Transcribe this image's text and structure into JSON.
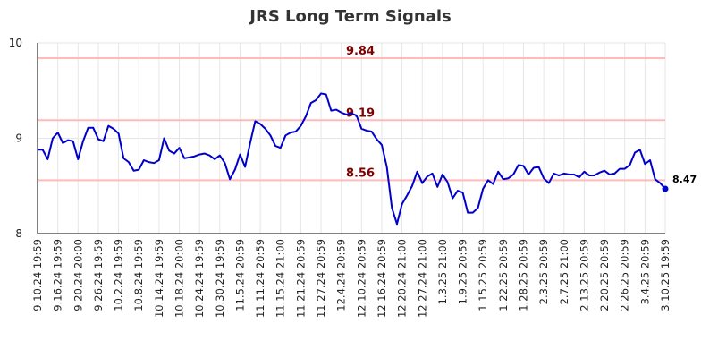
{
  "chart_data": {
    "type": "line",
    "title": "JRS Long Term Signals",
    "xlabel": "",
    "ylabel": "",
    "ylim": [
      8,
      10
    ],
    "yticks": [
      8,
      9,
      10
    ],
    "grid": true,
    "line_color": "#0000cc",
    "ref_line_color": "#ffbbbb",
    "ref_label_color": "#800000",
    "x_tick_labels": [
      "9.10.24 19:59",
      "9.16.24 19:59",
      "9.20.24 20:00",
      "9.26.24 19:59",
      "10.2.24 19:59",
      "10.8.24 19:59",
      "10.14.24 19:59",
      "10.18.24 20:00",
      "10.24.24 19:59",
      "10.30.24 19:59",
      "11.5.24 20:59",
      "11.11.24 20:59",
      "11.15.24 21:00",
      "11.21.24 20:59",
      "11.27.24 20:59",
      "12.4.24 20:59",
      "12.10.24 20:59",
      "12.16.24 20:59",
      "12.20.24 21:00",
      "12.27.24 21:00",
      "1.3.25 21:00",
      "1.9.25 20:59",
      "1.15.25 20:59",
      "1.22.25 20:59",
      "1.28.25 20:59",
      "2.3.25 20:59",
      "2.7.25 21:00",
      "2.13.25 20:59",
      "2.20.25 20:59",
      "2.26.25 20:59",
      "3.4.25 20:59",
      "3.10.25 19:59"
    ],
    "reference_lines": [
      {
        "value": 9.84,
        "label": "9.84"
      },
      {
        "value": 9.19,
        "label": "9.19"
      },
      {
        "value": 8.56,
        "label": "8.56"
      }
    ],
    "last_value_label": "8.47",
    "values": [
      8.88,
      8.88,
      8.78,
      9.0,
      9.06,
      8.95,
      8.98,
      8.97,
      8.78,
      8.97,
      9.11,
      9.11,
      8.99,
      8.97,
      9.13,
      9.1,
      9.05,
      8.79,
      8.75,
      8.66,
      8.67,
      8.77,
      8.75,
      8.74,
      8.77,
      9.0,
      8.87,
      8.84,
      8.9,
      8.79,
      8.8,
      8.81,
      8.83,
      8.84,
      8.82,
      8.78,
      8.82,
      8.74,
      8.57,
      8.67,
      8.83,
      8.7,
      8.95,
      9.18,
      9.15,
      9.1,
      9.03,
      8.92,
      8.9,
      9.03,
      9.06,
      9.07,
      9.13,
      9.23,
      9.37,
      9.4,
      9.47,
      9.46,
      9.29,
      9.3,
      9.27,
      9.25,
      9.26,
      9.24,
      9.1,
      9.08,
      9.07,
      8.99,
      8.93,
      8.7,
      8.27,
      8.1,
      8.31,
      8.4,
      8.5,
      8.65,
      8.53,
      8.6,
      8.63,
      8.49,
      8.62,
      8.54,
      8.37,
      8.45,
      8.43,
      8.22,
      8.22,
      8.27,
      8.47,
      8.56,
      8.52,
      8.65,
      8.57,
      8.58,
      8.62,
      8.72,
      8.71,
      8.62,
      8.69,
      8.7,
      8.58,
      8.53,
      8.63,
      8.61,
      8.63,
      8.62,
      8.62,
      8.59,
      8.65,
      8.61,
      8.61,
      8.64,
      8.66,
      8.62,
      8.63,
      8.68,
      8.68,
      8.72,
      8.85,
      8.88,
      8.73,
      8.77,
      8.57,
      8.53,
      8.47
    ]
  }
}
